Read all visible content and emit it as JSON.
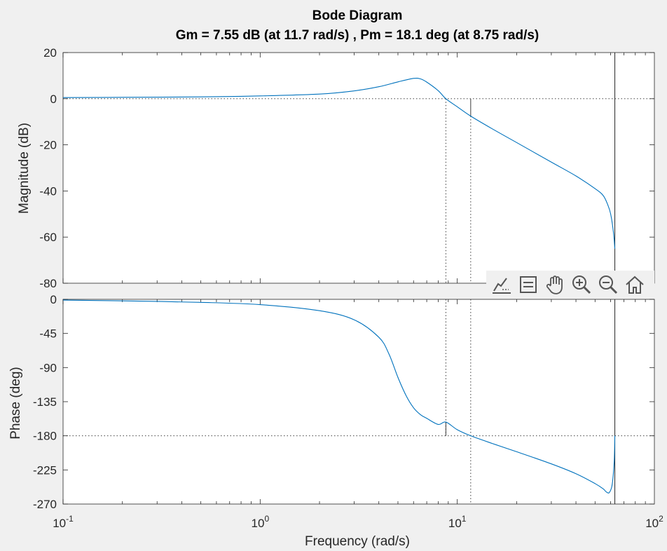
{
  "chart_data": {
    "type": "line",
    "title": "Bode Diagram",
    "subtitle": "Gm = 7.55 dB (at 11.7 rad/s) ,  Pm = 18.1 deg (at 8.75 rad/s)",
    "xlabel": "Frequency  (rad/s)",
    "xscale": "log",
    "xlim": [
      0.1,
      100
    ],
    "x_tick_labels": [
      {
        "value": 0.1,
        "base": "10",
        "exp": "-1"
      },
      {
        "value": 1,
        "base": "10",
        "exp": "0"
      },
      {
        "value": 10,
        "base": "10",
        "exp": "1"
      },
      {
        "value": 100,
        "base": "10",
        "exp": "2"
      }
    ],
    "grid": false,
    "line_color": "#0072bd",
    "margins": {
      "gain_margin_db": 7.55,
      "gain_crossover_freq": 11.7,
      "phase_margin_deg": 18.1,
      "phase_crossover_freq": 8.75,
      "vertical_asymptote_freq": 63
    },
    "magnitude": {
      "ylabel": "Magnitude (dB)",
      "ylim": [
        -80,
        20
      ],
      "yticks": [
        20,
        0,
        -20,
        -40,
        -60,
        -80
      ],
      "x": [
        0.1,
        0.2,
        0.5,
        1,
        2,
        3,
        4,
        5,
        6,
        6.5,
        7,
        8,
        8.75,
        10,
        11.7,
        15,
        20,
        30,
        40,
        50,
        55,
        58,
        60,
        62,
        63
      ],
      "y": [
        0.5,
        0.6,
        0.8,
        1.2,
        2.0,
        3.4,
        5.2,
        7.3,
        8.8,
        8.6,
        7.2,
        3.5,
        0.0,
        -3.5,
        -7.55,
        -13,
        -19,
        -27.5,
        -33.5,
        -39,
        -42,
        -46,
        -50,
        -58,
        -65
      ]
    },
    "phase": {
      "ylabel": "Phase (deg)",
      "ylim": [
        -270,
        0
      ],
      "yticks": [
        0,
        -45,
        -90,
        -135,
        -180,
        -225,
        -270
      ],
      "x": [
        0.1,
        0.2,
        0.5,
        1,
        2,
        3,
        4,
        4.5,
        5,
        5.5,
        6,
        6.5,
        7,
        8,
        8.75,
        10,
        11.7,
        15,
        20,
        30,
        40,
        50,
        55,
        57,
        59,
        61,
        62.5,
        63
      ],
      "y": [
        -1,
        -2,
        -4,
        -7,
        -15,
        -27,
        -50,
        -72,
        -103,
        -127,
        -143,
        -152,
        -157,
        -165,
        -161.9,
        -172,
        -180,
        -190,
        -201,
        -217,
        -230,
        -243,
        -250,
        -254,
        -255,
        -245,
        -215,
        -180
      ]
    }
  },
  "toolbar": {
    "icons": [
      "brush-icon",
      "legend-icon",
      "pan-hand-icon",
      "zoom-in-icon",
      "zoom-out-icon",
      "home-icon"
    ]
  }
}
